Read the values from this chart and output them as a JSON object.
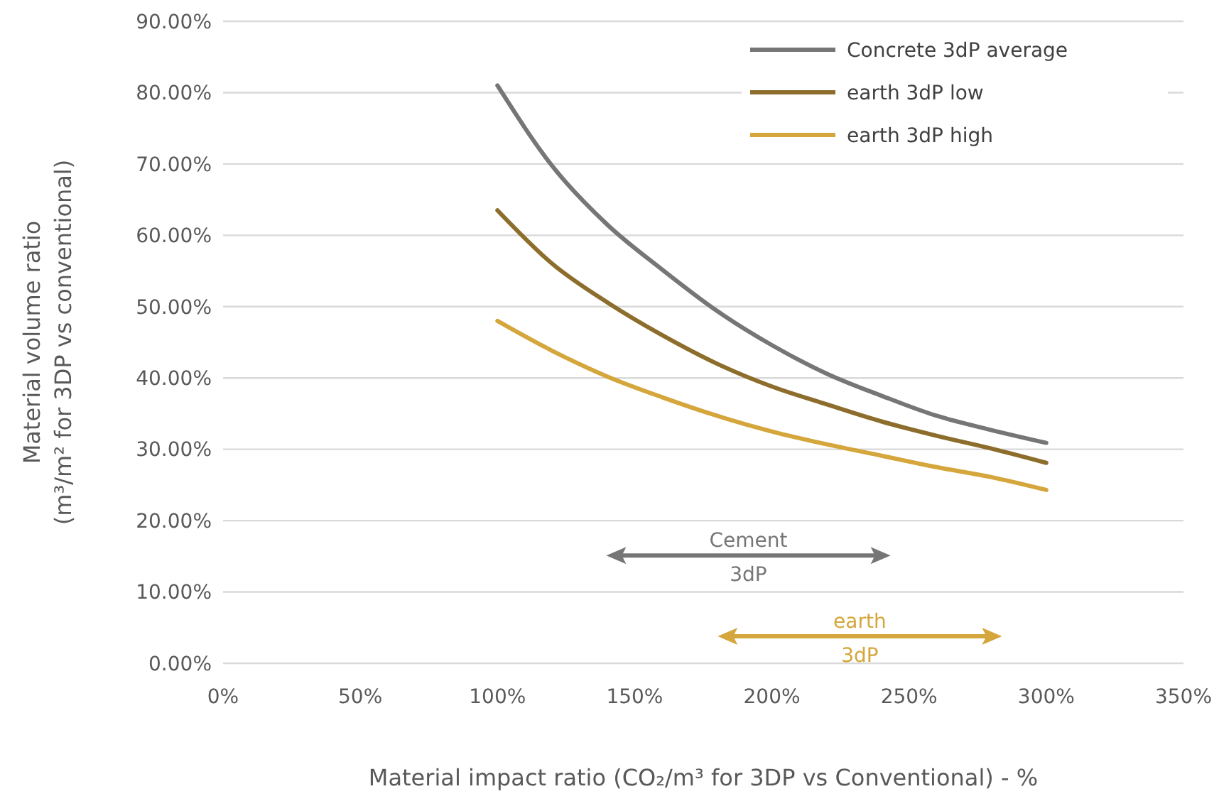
{
  "chart_data": {
    "type": "line",
    "xlabel": "Material impact ratio (CO₂/m³ for 3DP vs Conventional) - %",
    "ylabel": "Material volume ratio\n(m³/m² for 3DP vs conventional)",
    "x": [
      100,
      120,
      140,
      160,
      180,
      200,
      220,
      240,
      260,
      280,
      300
    ],
    "series": [
      {
        "name": "Concrete 3dP average",
        "color": "#767676",
        "values": [
          81,
          69.7,
          61.5,
          55.2,
          49.4,
          44.6,
          40.6,
          37.5,
          34.7,
          32.7,
          30.9
        ]
      },
      {
        "name": "earth 3dP low",
        "color": "#8c6d2c",
        "values": [
          63.5,
          56,
          50.6,
          46,
          42,
          38.8,
          36.3,
          33.9,
          31.9,
          30.1,
          28.1
        ]
      },
      {
        "name": "earth 3dP high",
        "color": "#d4a63c",
        "values": [
          48,
          43.8,
          40.2,
          37.3,
          34.7,
          32.5,
          30.7,
          29.1,
          27.5,
          26.1,
          24.3
        ]
      }
    ],
    "xlim": [
      0,
      350
    ],
    "xticks": [
      {
        "value": 0,
        "label": "0%"
      },
      {
        "value": 50,
        "label": "50%"
      },
      {
        "value": 100,
        "label": "100%"
      },
      {
        "value": 150,
        "label": "150%"
      },
      {
        "value": 200,
        "label": "200%"
      },
      {
        "value": 250,
        "label": "250%"
      },
      {
        "value": 300,
        "label": "300%"
      },
      {
        "value": 350,
        "label": "350%"
      }
    ],
    "ylim": [
      0,
      90
    ],
    "yticks": [
      {
        "value": 0,
        "label": "0.00%"
      },
      {
        "value": 10,
        "label": "10.00%"
      },
      {
        "value": 20,
        "label": "20.00%"
      },
      {
        "value": 30,
        "label": "30.00%"
      },
      {
        "value": 40,
        "label": "40.00%"
      },
      {
        "value": 50,
        "label": "50.00%"
      },
      {
        "value": 60,
        "label": "60.00%"
      },
      {
        "value": 70,
        "label": "70.00%"
      },
      {
        "value": 80,
        "label": "80.00%"
      },
      {
        "value": 90,
        "label": "90.00%"
      }
    ],
    "annotations": [
      "Cement\n3dP",
      "earth\n3dP"
    ],
    "grid": "y",
    "legend": "top right",
    "marker": "none",
    "line_style": "solid"
  }
}
